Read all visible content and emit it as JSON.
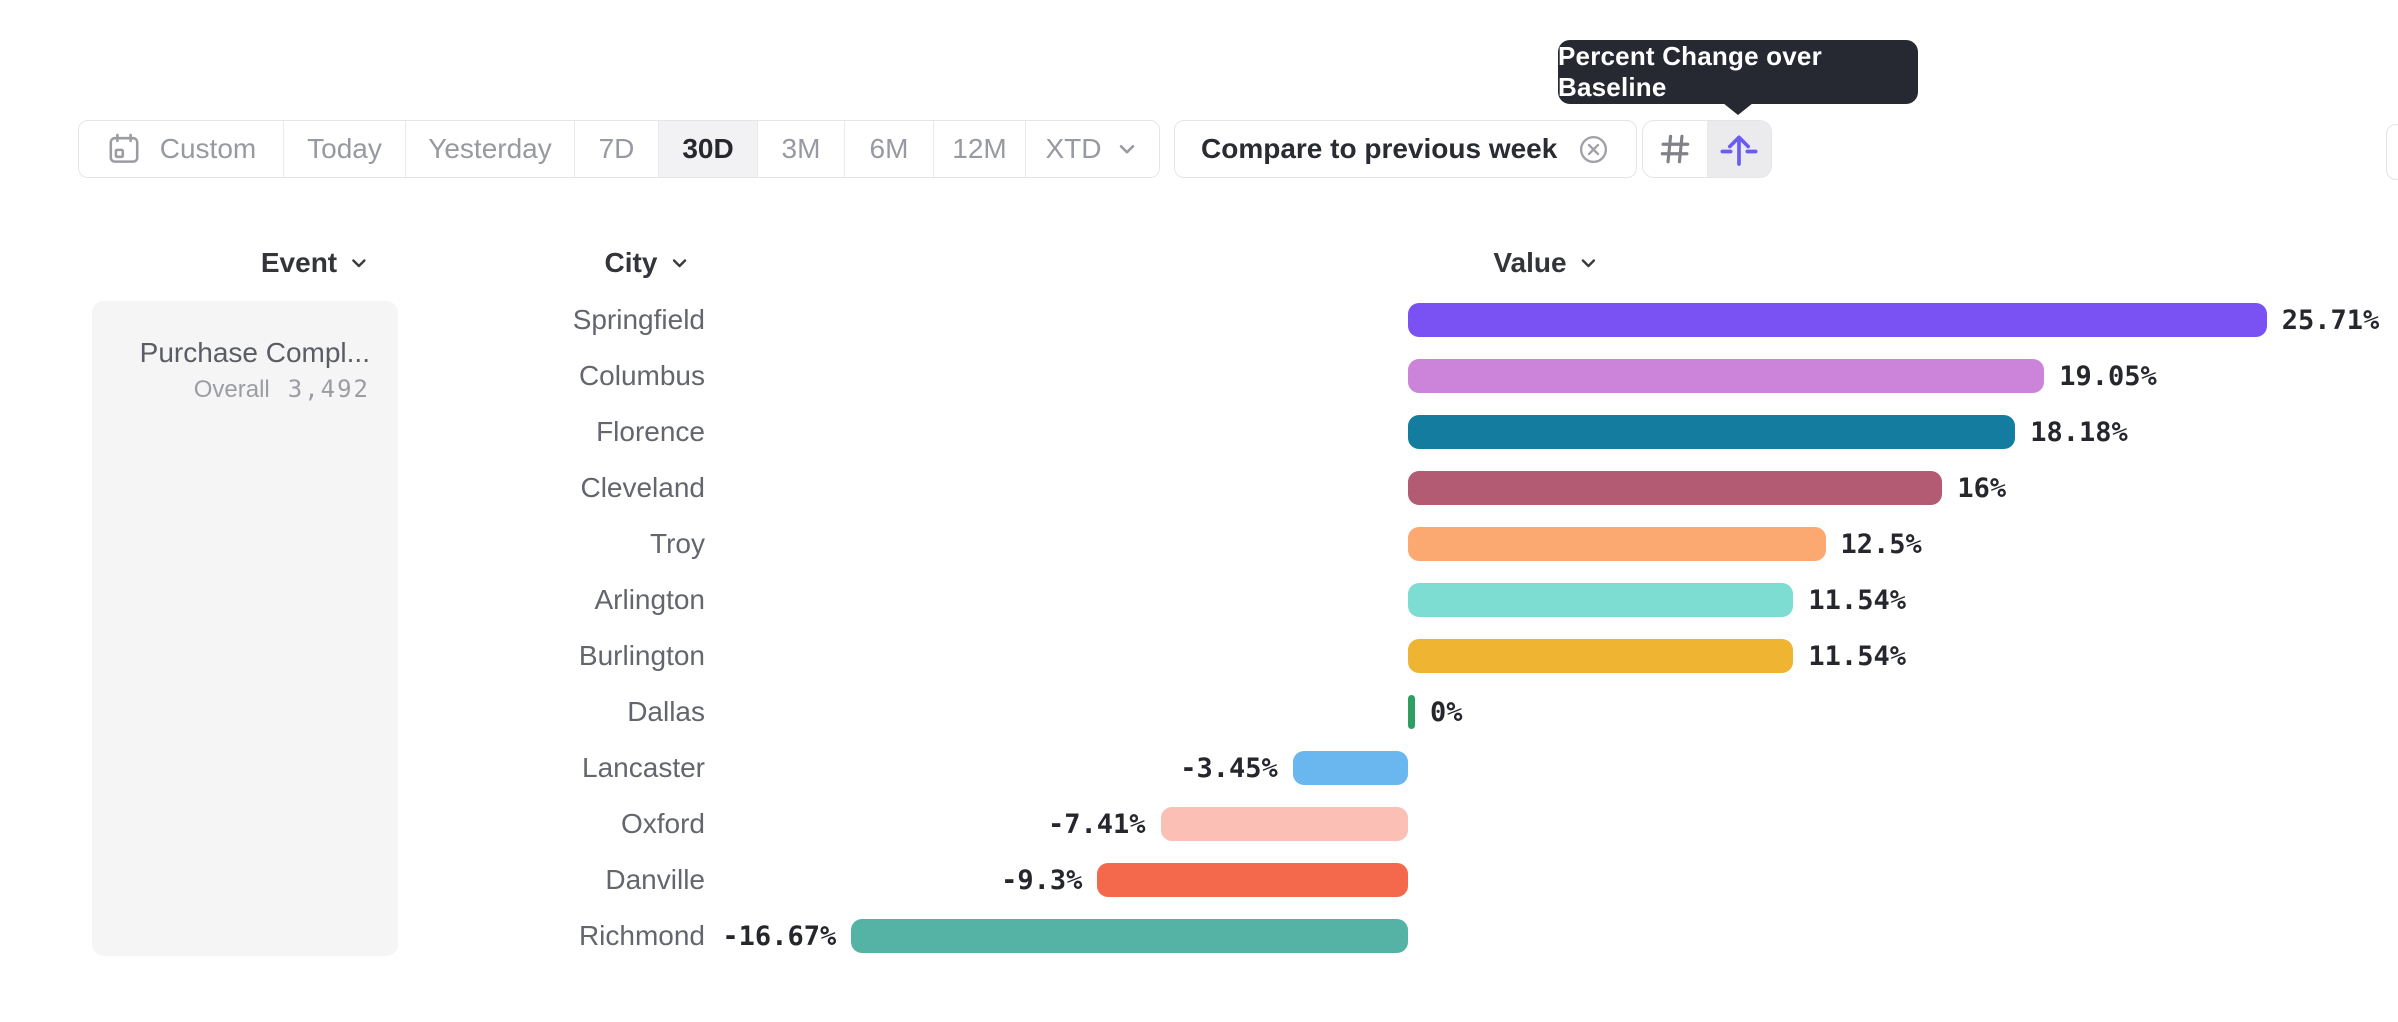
{
  "tooltip": {
    "text": "Percent Change over Baseline"
  },
  "toolbar": {
    "date_ranges": [
      {
        "label": "Custom",
        "has_icon": "calendar-icon",
        "selected": false
      },
      {
        "label": "Today",
        "selected": false
      },
      {
        "label": "Yesterday",
        "selected": false
      },
      {
        "label": "7D",
        "selected": false
      },
      {
        "label": "30D",
        "selected": true
      },
      {
        "label": "3M",
        "selected": false
      },
      {
        "label": "6M",
        "selected": false
      },
      {
        "label": "12M",
        "selected": false
      },
      {
        "label": "XTD",
        "has_dropdown": true,
        "selected": false
      }
    ],
    "compare_label": "Compare to previous week",
    "view_toggles": [
      {
        "name": "hash-grid-icon",
        "selected": false,
        "color": "#808288"
      },
      {
        "name": "percent-change-baseline-icon",
        "selected": true,
        "color": "#6c5bf0"
      }
    ]
  },
  "columns": {
    "event": "Event",
    "city": "City",
    "value": "Value"
  },
  "event_card": {
    "title": "Purchase Compl...",
    "metric_label": "Overall",
    "metric_value": "3,492"
  },
  "chart_data": {
    "type": "bar",
    "orientation": "horizontal",
    "title": "Percent Change over Baseline",
    "unit": "%",
    "categories": [
      "Springfield",
      "Columbus",
      "Florence",
      "Cleveland",
      "Troy",
      "Arlington",
      "Burlington",
      "Dallas",
      "Lancaster",
      "Oxford",
      "Danville",
      "Richmond"
    ],
    "values": [
      25.71,
      19.05,
      18.18,
      16,
      12.5,
      11.54,
      11.54,
      0,
      -3.45,
      -7.41,
      -9.3,
      -16.67
    ],
    "value_labels": [
      "25.71%",
      "19.05%",
      "18.18%",
      "16%",
      "12.5%",
      "11.54%",
      "11.54%",
      "0%",
      "-3.45%",
      "-7.41%",
      "-9.3%",
      "-16.67%"
    ],
    "colors": [
      "#7a52f4",
      "#cc84db",
      "#147d9f",
      "#b25b73",
      "#fba871",
      "#7eddd3",
      "#f0b433",
      "#2e9e63",
      "#6ab7f0",
      "#fbbfb5",
      "#f4694b",
      "#54b3a4"
    ],
    "xlim": [
      -16.67,
      25.71
    ],
    "baseline": 0,
    "grid": false,
    "legend": false
  }
}
